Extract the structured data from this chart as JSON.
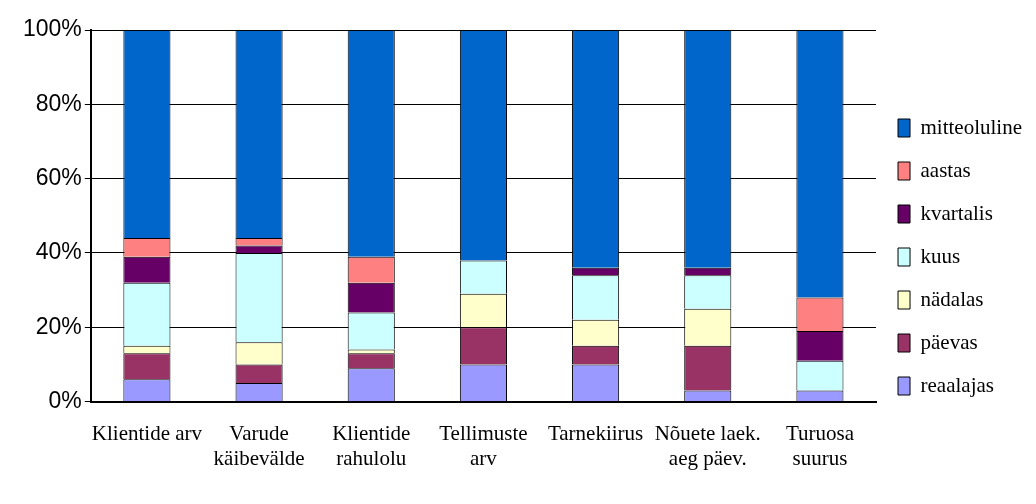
{
  "chart_data": {
    "type": "bar",
    "stacked": true,
    "categories": [
      "Klientide arv",
      "Varude käibevälde",
      "Klientide rahulolu",
      "Tellimuste arv",
      "Tarnekiirus",
      "Nõuete laek. aeg päev.",
      "Turuosa suurus"
    ],
    "series": [
      {
        "name": "reaalajas",
        "color": "#9999ff",
        "values": [
          6,
          5,
          9,
          10,
          10,
          3,
          3
        ]
      },
      {
        "name": "päevas",
        "color": "#993366",
        "values": [
          7,
          5,
          4,
          10,
          5,
          12,
          0
        ]
      },
      {
        "name": "nädalas",
        "color": "#ffffcc",
        "values": [
          2,
          6,
          1,
          9,
          7,
          10,
          0
        ]
      },
      {
        "name": "kuus",
        "color": "#ccffff",
        "values": [
          17,
          24,
          10,
          9,
          12,
          9,
          8
        ]
      },
      {
        "name": "kvartalis",
        "color": "#660066",
        "values": [
          7,
          2,
          8,
          0,
          2,
          2,
          8
        ]
      },
      {
        "name": "aastas",
        "color": "#ff8080",
        "values": [
          5,
          2,
          7,
          0,
          0,
          0,
          9
        ]
      },
      {
        "name": "mitteoluline",
        "color": "#0066cc",
        "values": [
          56,
          56,
          61,
          62,
          64,
          64,
          72
        ]
      }
    ],
    "ylim": [
      0,
      100
    ],
    "yticks": [
      {
        "value": 0,
        "label": "0%"
      },
      {
        "value": 20,
        "label": "20%"
      },
      {
        "value": 40,
        "label": "40%"
      },
      {
        "value": 60,
        "label": "60%"
      },
      {
        "value": 80,
        "label": "80%"
      },
      {
        "value": 100,
        "label": "100%"
      }
    ],
    "grid": "y",
    "legend": "right"
  }
}
